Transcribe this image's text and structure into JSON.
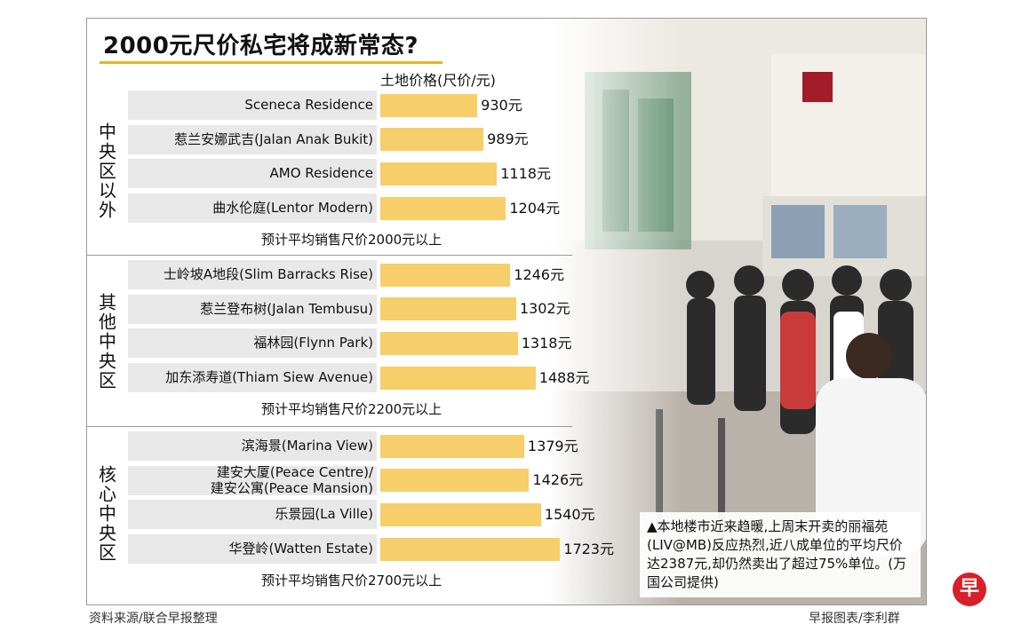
{
  "title": "2000元尺价私宅将成新常态?",
  "chart_data": {
    "type": "bar",
    "orientation": "horizontal",
    "value_label": "土地价格(尺价/元)",
    "value_suffix": "元",
    "groups": [
      {
        "name": "中央区以外",
        "note": "预计平均销售尺价2000元以上",
        "items": [
          {
            "label": "Sceneca Residence",
            "value": 930
          },
          {
            "label": "惹兰安娜武吉(Jalan Anak Bukit)",
            "value": 989
          },
          {
            "label": "AMO Residence",
            "value": 1118
          },
          {
            "label": "曲水伦庭(Lentor Modern)",
            "value": 1204
          }
        ]
      },
      {
        "name": "其他中央区",
        "note": "预计平均销售尺价2200元以上",
        "items": [
          {
            "label": "士岭坡A地段(Slim Barracks Rise)",
            "value": 1246
          },
          {
            "label": "惹兰登布树(Jalan Tembusu)",
            "value": 1302
          },
          {
            "label": "福林园(Flynn Park)",
            "value": 1318
          },
          {
            "label": "加东添寿道(Thiam Siew Avenue)",
            "value": 1488
          }
        ]
      },
      {
        "name": "核心中央区",
        "note": "预计平均销售尺价2700元以上",
        "items": [
          {
            "label": "滨海景(Marina View)",
            "value": 1379
          },
          {
            "label": "建安大厦(Peace Centre)/",
            "label_line2": "建安公寓(Peace Mansion)",
            "value": 1426
          },
          {
            "label": "乐景园(La Ville)",
            "value": 1540
          },
          {
            "label": "华登岭(Watten Estate)",
            "value": 1723
          }
        ]
      }
    ]
  },
  "caption": "▲本地楼市近来趋暖,上周末开卖的丽福苑(LIV@MB)反应热烈,近八成单位的平均尺价达2387元,却仍然卖出了超过75%单位。(万国公司提供)",
  "source": "资料来源/联合早报整理",
  "credit": "早报图表/李利群",
  "logo_text": "早",
  "colors": {
    "bar": "#f6cf6a",
    "accent": "#e6b422",
    "row_bg": "#e8e8e8",
    "logo": "#d7202a"
  }
}
